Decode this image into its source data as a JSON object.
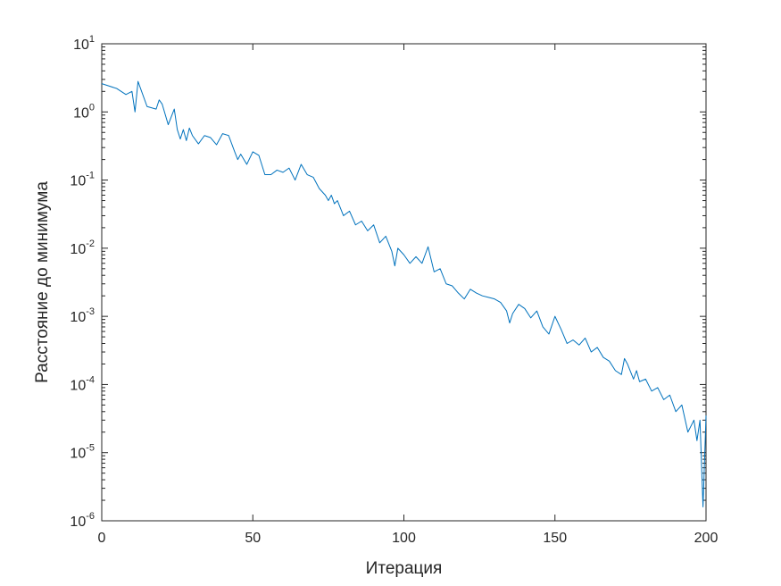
{
  "chart_data": {
    "type": "line",
    "title": "",
    "xlabel": "Итерация",
    "ylabel": "Расстояние до минимума",
    "xlim": [
      0,
      200
    ],
    "ylim": [
      1e-06,
      10
    ],
    "yscale": "log",
    "grid": false,
    "legend": "none",
    "x_ticks": [
      0,
      50,
      100,
      150,
      200
    ],
    "x_tick_labels": [
      "0",
      "50",
      "100",
      "150",
      "200"
    ],
    "y_ticks": [
      1e-06,
      1e-05,
      0.0001,
      0.001,
      0.01,
      0.1,
      1,
      10
    ],
    "y_tick_labels": [
      {
        "base": "10",
        "exp": "-6"
      },
      {
        "base": "10",
        "exp": "-5"
      },
      {
        "base": "10",
        "exp": "-4"
      },
      {
        "base": "10",
        "exp": "-3"
      },
      {
        "base": "10",
        "exp": "-2"
      },
      {
        "base": "10",
        "exp": "-1"
      },
      {
        "base": "10",
        "exp": "0"
      },
      {
        "base": "10",
        "exp": "1"
      }
    ],
    "series": [
      {
        "color": "#0072bd",
        "x": [
          0,
          5,
          8,
          10,
          11,
          12,
          15,
          18,
          19,
          20,
          22,
          24,
          25,
          26,
          27,
          28,
          29,
          30,
          32,
          34,
          36,
          38,
          40,
          42,
          44,
          45,
          46,
          48,
          50,
          52,
          54,
          56,
          58,
          60,
          62,
          64,
          66,
          68,
          70,
          72,
          74,
          75,
          76,
          77,
          78,
          80,
          82,
          84,
          86,
          88,
          90,
          92,
          94,
          96,
          97,
          98,
          100,
          102,
          104,
          106,
          108,
          110,
          112,
          114,
          116,
          118,
          120,
          122,
          124,
          126,
          128,
          130,
          132,
          134,
          135,
          136,
          138,
          140,
          142,
          144,
          146,
          148,
          150,
          152,
          154,
          156,
          158,
          160,
          162,
          164,
          166,
          168,
          170,
          172,
          173,
          174,
          176,
          177,
          178,
          180,
          182,
          184,
          186,
          188,
          190,
          192,
          194,
          196,
          197,
          198,
          199,
          200
        ],
        "y": [
          2.6,
          2.2,
          1.8,
          2.0,
          1.0,
          2.8,
          1.2,
          1.1,
          1.5,
          1.3,
          0.65,
          1.1,
          0.55,
          0.4,
          0.55,
          0.38,
          0.58,
          0.45,
          0.34,
          0.45,
          0.42,
          0.33,
          0.48,
          0.45,
          0.26,
          0.2,
          0.24,
          0.17,
          0.26,
          0.23,
          0.12,
          0.12,
          0.14,
          0.13,
          0.15,
          0.1,
          0.17,
          0.12,
          0.11,
          0.075,
          0.06,
          0.05,
          0.06,
          0.045,
          0.05,
          0.03,
          0.035,
          0.022,
          0.025,
          0.018,
          0.022,
          0.012,
          0.015,
          0.009,
          0.0055,
          0.01,
          0.008,
          0.006,
          0.0075,
          0.006,
          0.0105,
          0.0045,
          0.005,
          0.003,
          0.0028,
          0.0022,
          0.0018,
          0.0025,
          0.0022,
          0.002,
          0.0019,
          0.0018,
          0.0016,
          0.0012,
          0.0008,
          0.0011,
          0.0015,
          0.0013,
          0.00095,
          0.0012,
          0.0007,
          0.00055,
          0.001,
          0.00065,
          0.0004,
          0.00045,
          0.00038,
          0.00048,
          0.0003,
          0.00035,
          0.00025,
          0.00022,
          0.00016,
          0.00014,
          0.00024,
          0.0002,
          0.00012,
          0.00016,
          0.00011,
          0.00012,
          8e-05,
          9e-05,
          6e-05,
          7e-05,
          4e-05,
          5e-05,
          2e-05,
          3e-05,
          1.5e-05,
          3e-05,
          1.6e-06,
          3.5e-05
        ]
      }
    ]
  }
}
